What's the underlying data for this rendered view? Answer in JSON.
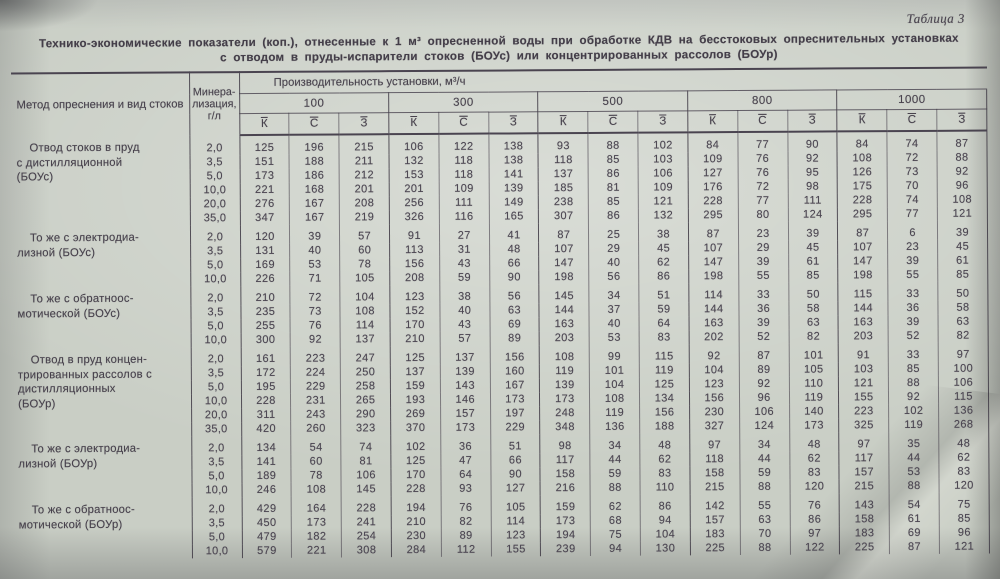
{
  "doc": {
    "table_label": "Таблица 3",
    "title": "Технико-экономические показатели (коп.), отнесенные к 1 м³ опресненной воды при обработке КДВ на бесстоковых опреснительных установках с отводом в пруды-испарители стоков (БОУс) или концентрированных рассолов (БОУр)"
  },
  "colors": {
    "paper": "#c9cec5",
    "ink": "#46404b",
    "rule": "#4a4450"
  },
  "table": {
    "col1_header": "Метод опреснения и вид стоков",
    "col2_header": "Минера-\nлизация,\nг/л",
    "capacity_header": "Производительность установки, м³/ч",
    "capacities": [
      "100",
      "300",
      "500",
      "800",
      "1000"
    ],
    "subcols": [
      "К",
      "С",
      "З"
    ],
    "groups": [
      {
        "method": "Отвод стоков в пруд\nс дистилляционной\n(БОУс)",
        "rows": [
          {
            "m": "2,0",
            "v": [
              "125",
              "196",
              "215",
              "106",
              "122",
              "138",
              "93",
              "88",
              "102",
              "84",
              "77",
              "90",
              "84",
              "74",
              "87"
            ]
          },
          {
            "m": "3,5",
            "v": [
              "151",
              "188",
              "211",
              "132",
              "118",
              "138",
              "118",
              "85",
              "103",
              "109",
              "76",
              "92",
              "108",
              "72",
              "88"
            ]
          },
          {
            "m": "5,0",
            "v": [
              "173",
              "186",
              "212",
              "153",
              "118",
              "141",
              "137",
              "86",
              "106",
              "127",
              "76",
              "95",
              "126",
              "73",
              "92"
            ]
          },
          {
            "m": "10,0",
            "v": [
              "221",
              "168",
              "201",
              "201",
              "109",
              "139",
              "185",
              "81",
              "109",
              "176",
              "72",
              "98",
              "175",
              "70",
              "96"
            ]
          },
          {
            "m": "20,0",
            "v": [
              "276",
              "167",
              "208",
              "256",
              "111",
              "149",
              "238",
              "85",
              "121",
              "228",
              "77",
              "111",
              "228",
              "74",
              "108"
            ]
          },
          {
            "m": "35,0",
            "v": [
              "347",
              "167",
              "219",
              "326",
              "116",
              "165",
              "307",
              "86",
              "132",
              "295",
              "80",
              "124",
              "295",
              "77",
              "121"
            ]
          }
        ]
      },
      {
        "method": "То же с электродиа-\nлизной (БОУс)",
        "rows": [
          {
            "m": "2,0",
            "v": [
              "120",
              "39",
              "57",
              "91",
              "27",
              "41",
              "87",
              "25",
              "38",
              "87",
              "23",
              "39",
              "87",
              "6",
              "39"
            ]
          },
          {
            "m": "3,5",
            "v": [
              "131",
              "40",
              "60",
              "113",
              "31",
              "48",
              "107",
              "29",
              "45",
              "107",
              "29",
              "45",
              "107",
              "23",
              "45"
            ]
          },
          {
            "m": "5,0",
            "v": [
              "169",
              "53",
              "78",
              "156",
              "43",
              "66",
              "147",
              "40",
              "62",
              "147",
              "39",
              "61",
              "147",
              "39",
              "61"
            ]
          },
          {
            "m": "10,0",
            "v": [
              "226",
              "71",
              "105",
              "208",
              "59",
              "90",
              "198",
              "56",
              "86",
              "198",
              "55",
              "85",
              "198",
              "55",
              "85"
            ]
          }
        ]
      },
      {
        "method": "То же с обратноос-\nмотической (БОУс)",
        "rows": [
          {
            "m": "2,0",
            "v": [
              "210",
              "72",
              "104",
              "123",
              "38",
              "56",
              "145",
              "34",
              "51",
              "114",
              "33",
              "50",
              "115",
              "33",
              "50"
            ]
          },
          {
            "m": "3,5",
            "v": [
              "235",
              "73",
              "108",
              "152",
              "40",
              "63",
              "144",
              "37",
              "59",
              "144",
              "36",
              "58",
              "144",
              "36",
              "58"
            ]
          },
          {
            "m": "5,0",
            "v": [
              "255",
              "76",
              "114",
              "170",
              "43",
              "69",
              "163",
              "40",
              "64",
              "163",
              "39",
              "63",
              "163",
              "39",
              "63"
            ]
          },
          {
            "m": "10,0",
            "v": [
              "300",
              "92",
              "137",
              "210",
              "57",
              "89",
              "203",
              "53",
              "83",
              "202",
              "52",
              "82",
              "203",
              "52",
              "82"
            ]
          }
        ]
      },
      {
        "method": "Отвод в пруд концен-\nтрированных рассолов с\nдистилляционных\n(БОУр)",
        "rows": [
          {
            "m": "2,0",
            "v": [
              "161",
              "223",
              "247",
              "125",
              "137",
              "156",
              "108",
              "99",
              "115",
              "92",
              "87",
              "101",
              "91",
              "33",
              "97"
            ]
          },
          {
            "m": "3,5",
            "v": [
              "172",
              "224",
              "250",
              "137",
              "139",
              "160",
              "119",
              "101",
              "119",
              "104",
              "89",
              "105",
              "103",
              "85",
              "100"
            ]
          },
          {
            "m": "5,0",
            "v": [
              "195",
              "229",
              "258",
              "159",
              "143",
              "167",
              "139",
              "104",
              "125",
              "123",
              "92",
              "110",
              "121",
              "88",
              "106"
            ]
          },
          {
            "m": "10,0",
            "v": [
              "228",
              "231",
              "265",
              "193",
              "146",
              "173",
              "173",
              "108",
              "134",
              "156",
              "96",
              "119",
              "155",
              "92",
              "115"
            ]
          },
          {
            "m": "20,0",
            "v": [
              "311",
              "243",
              "290",
              "269",
              "157",
              "197",
              "248",
              "119",
              "156",
              "230",
              "106",
              "140",
              "223",
              "102",
              "136"
            ]
          },
          {
            "m": "35,0",
            "v": [
              "420",
              "260",
              "323",
              "370",
              "173",
              "229",
              "348",
              "136",
              "188",
              "327",
              "124",
              "173",
              "325",
              "119",
              "268"
            ]
          }
        ]
      },
      {
        "method": "То же с электродиа-\nлизной (БОУр)",
        "rows": [
          {
            "m": "2,0",
            "v": [
              "134",
              "54",
              "74",
              "102",
              "36",
              "51",
              "98",
              "34",
              "48",
              "97",
              "34",
              "48",
              "97",
              "35",
              "48"
            ]
          },
          {
            "m": "3,5",
            "v": [
              "141",
              "60",
              "81",
              "125",
              "47",
              "66",
              "117",
              "44",
              "62",
              "118",
              "44",
              "62",
              "117",
              "44",
              "62"
            ]
          },
          {
            "m": "5,0",
            "v": [
              "189",
              "78",
              "106",
              "170",
              "64",
              "90",
              "158",
              "59",
              "83",
              "158",
              "59",
              "83",
              "157",
              "53",
              "83"
            ]
          },
          {
            "m": "10,0",
            "v": [
              "246",
              "108",
              "145",
              "228",
              "93",
              "127",
              "216",
              "88",
              "110",
              "215",
              "88",
              "120",
              "215",
              "88",
              "120"
            ]
          }
        ]
      },
      {
        "method": "То же с обратноос-\nмотической (БОУр)",
        "rows": [
          {
            "m": "2,0",
            "v": [
              "429",
              "164",
              "228",
              "194",
              "76",
              "105",
              "159",
              "62",
              "86",
              "142",
              "55",
              "76",
              "143",
              "54",
              "75"
            ]
          },
          {
            "m": "3,5",
            "v": [
              "450",
              "173",
              "241",
              "210",
              "82",
              "114",
              "173",
              "68",
              "94",
              "157",
              "63",
              "86",
              "158",
              "61",
              "85"
            ]
          },
          {
            "m": "5,0",
            "v": [
              "479",
              "182",
              "254",
              "230",
              "89",
              "123",
              "194",
              "75",
              "104",
              "183",
              "70",
              "97",
              "183",
              "69",
              "96"
            ]
          },
          {
            "m": "10,0",
            "v": [
              "579",
              "221",
              "308",
              "284",
              "112",
              "155",
              "239",
              "94",
              "130",
              "225",
              "88",
              "122",
              "225",
              "87",
              "121"
            ]
          }
        ]
      }
    ]
  }
}
